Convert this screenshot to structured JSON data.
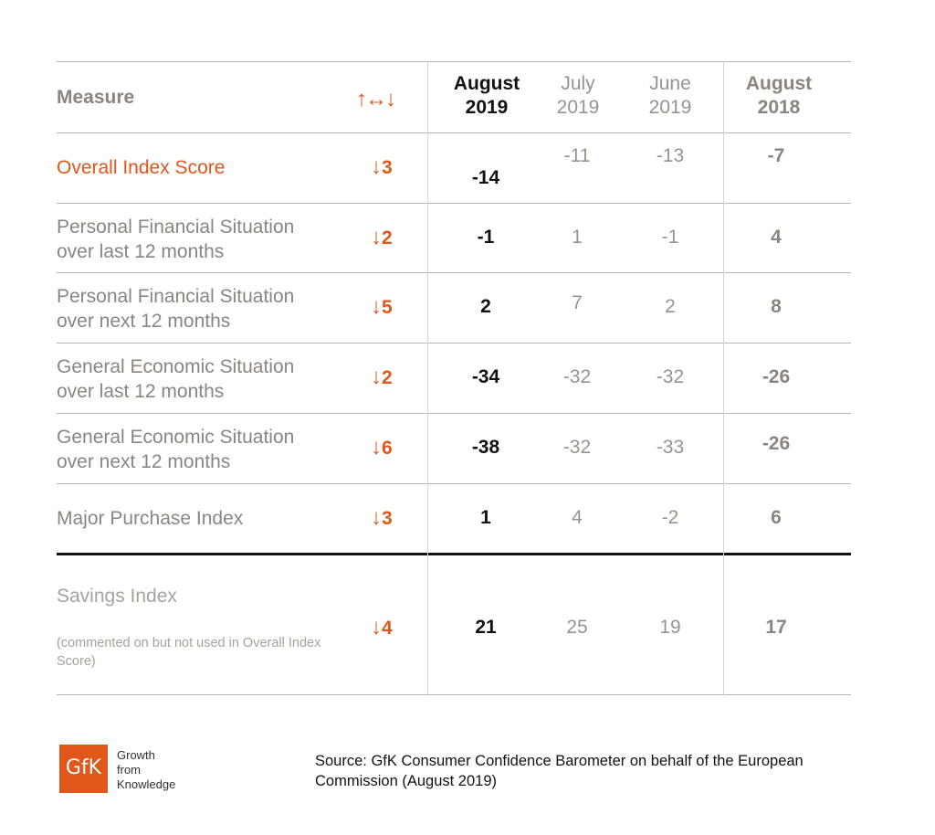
{
  "header": {
    "measure": "Measure",
    "direction_icon": "up-left-right-down-arrows-icon",
    "columns": [
      {
        "line1": "August",
        "line2": "2019",
        "style": "current"
      },
      {
        "line1": "July",
        "line2": "2019",
        "style": "prev"
      },
      {
        "line1": "June",
        "line2": "2019",
        "style": "prev"
      },
      {
        "line1": "August",
        "line2": "2018",
        "style": "year"
      }
    ]
  },
  "rows": [
    {
      "measure_line1": "Overall Index Score",
      "measure_line2": "",
      "change_arrow": "↓",
      "change": "3",
      "aug2019": "-14",
      "jul2019": "-11",
      "jun2019": "-13",
      "aug2018": "-7"
    },
    {
      "measure_line1": "Personal Financial Situation",
      "measure_line2": "over last 12 months",
      "change_arrow": "↓",
      "change": "2",
      "aug2019": "-1",
      "jul2019": "1",
      "jun2019": "-1",
      "aug2018": "4"
    },
    {
      "measure_line1": "Personal Financial Situation",
      "measure_line2": "over next 12 months",
      "change_arrow": "↓",
      "change": "5",
      "aug2019": "2",
      "jul2019": "7",
      "jun2019": "2",
      "aug2018": "8"
    },
    {
      "measure_line1": "General Economic Situation",
      "measure_line2": "over last 12 months",
      "change_arrow": "↓",
      "change": "2",
      "aug2019": "-34",
      "jul2019": "-32",
      "jun2019": "-32",
      "aug2018": "-26"
    },
    {
      "measure_line1": "General Economic Situation",
      "measure_line2": "over next 12 months",
      "change_arrow": "↓",
      "change": "6",
      "aug2019": "-38",
      "jul2019": "-32",
      "jun2019": "-33",
      "aug2018": "-26"
    },
    {
      "measure_line1": "Major Purchase Index",
      "measure_line2": "",
      "change_arrow": "↓",
      "change": "3",
      "aug2019": "1",
      "jul2019": "4",
      "jun2019": "-2",
      "aug2018": "6"
    }
  ],
  "savings": {
    "measure": "Savings Index",
    "note": "(commented on but not used in Overall Index Score)",
    "change_arrow": "↓",
    "change": "4",
    "aug2019": "21",
    "jul2019": "25",
    "jun2019": "19",
    "aug2018": "17"
  },
  "footer": {
    "logo_text": "GfK",
    "tagline": [
      "Growth",
      "from",
      "Knowledge"
    ],
    "source": "Source: GfK Consumer Confidence Barometer on behalf of the European Commission (August 2019)"
  },
  "colors": {
    "accent": "#e0561b",
    "current": "#111111",
    "muted": "#9a938d"
  },
  "chart_data": {
    "type": "table",
    "columns": [
      "Measure",
      "Change",
      "August 2019",
      "July 2019",
      "June 2019",
      "August 2018"
    ],
    "rows": [
      [
        "Overall Index Score",
        -3,
        -14,
        -11,
        -13,
        -7
      ],
      [
        "Personal Financial Situation over last 12 months",
        -2,
        -1,
        1,
        -1,
        4
      ],
      [
        "Personal Financial Situation over next 12 months",
        -5,
        2,
        7,
        2,
        8
      ],
      [
        "General Economic Situation over last 12 months",
        -2,
        -34,
        -32,
        -32,
        -26
      ],
      [
        "General Economic Situation over next 12 months",
        -6,
        -38,
        -32,
        -33,
        -26
      ],
      [
        "Major Purchase Index",
        -3,
        1,
        4,
        -2,
        6
      ],
      [
        "Savings Index",
        -4,
        21,
        25,
        19,
        17
      ]
    ]
  }
}
